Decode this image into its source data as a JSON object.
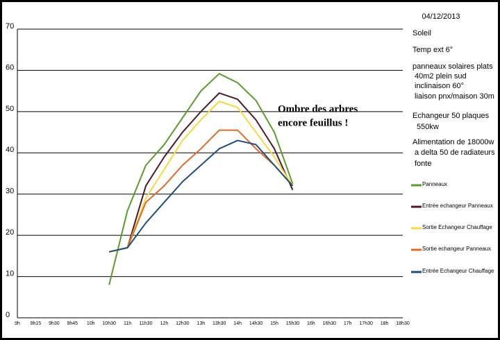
{
  "chart_data": {
    "type": "line",
    "date": "04/12/2013",
    "notes": [
      "Soleil",
      "Temp ext   6°",
      "panneaux solaires plats",
      "40m2 plein sud",
      "inclinaison 60°",
      "liaison pnx/maison 30m",
      "Echangeur 50 plaques",
      "550kw",
      "Alimentation de 18000w",
      "a delta 50 de radiateurs",
      "fonte"
    ],
    "annotation": [
      "Ombre des arbres",
      "encore feuillus !"
    ],
    "categories": [
      "9h",
      "9h15",
      "9h30",
      "9h45",
      "10h",
      "10h30",
      "11h",
      "11h30",
      "12h",
      "12h30",
      "13h",
      "13h30",
      "14h",
      "14h30",
      "15h",
      "15h30",
      "16h",
      "16h30",
      "17h",
      "17h30",
      "18h",
      "18h30"
    ],
    "ylim": [
      0,
      70
    ],
    "yticks": [
      0,
      10,
      20,
      30,
      40,
      50,
      60,
      70
    ],
    "grid": true,
    "series": [
      {
        "name": "Panneaux",
        "color": "#5b9a2e",
        "values": [
          null,
          null,
          null,
          null,
          null,
          8,
          26,
          37,
          42,
          48.5,
          55,
          59.2,
          57,
          52.7,
          45,
          32.5,
          null,
          null,
          null,
          null,
          null,
          null
        ]
      },
      {
        "name": "Entrée echangeur Panneaux",
        "color": "#4a1a2c",
        "values": [
          null,
          null,
          null,
          null,
          null,
          16,
          17,
          32,
          39,
          45,
          50,
          54.5,
          53,
          48,
          41,
          31,
          null,
          null,
          null,
          null,
          null,
          null
        ]
      },
      {
        "name": "Sortie Echangeur Chauffage",
        "color": "#f5d840",
        "values": [
          null,
          null,
          null,
          null,
          null,
          16,
          17,
          29,
          36,
          43,
          48,
          52.5,
          51,
          45,
          39,
          32,
          null,
          null,
          null,
          null,
          null,
          null
        ]
      },
      {
        "name": "Sortie echangeur Panneaux",
        "color": "#e06a2a",
        "values": [
          null,
          null,
          null,
          null,
          null,
          16,
          17,
          28,
          32,
          37,
          41,
          45.5,
          45.5,
          41,
          37,
          32,
          null,
          null,
          null,
          null,
          null,
          null
        ]
      },
      {
        "name": "Entrée Echangeur Chauffage",
        "color": "#1f4e79",
        "values": [
          null,
          null,
          null,
          null,
          null,
          16,
          17,
          23,
          28,
          33,
          37,
          41,
          43,
          42,
          37,
          32,
          null,
          null,
          null,
          null,
          null,
          null
        ]
      }
    ]
  }
}
